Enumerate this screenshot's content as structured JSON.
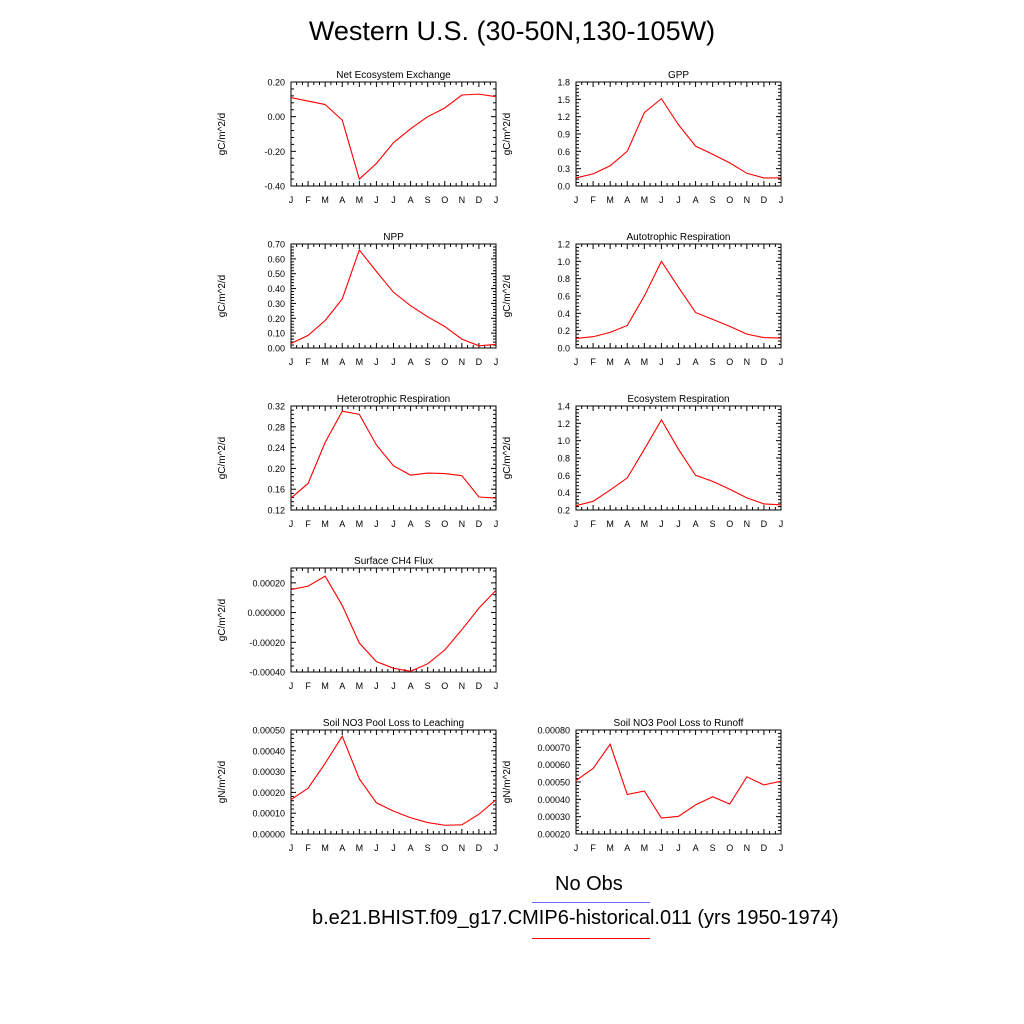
{
  "title": "Western U.S. (30-50N,130-105W)",
  "months": [
    "J",
    "F",
    "M",
    "A",
    "M",
    "J",
    "J",
    "A",
    "S",
    "O",
    "N",
    "D",
    "J"
  ],
  "colors": {
    "model": "#ff0000",
    "obs": "#6b6bff"
  },
  "legend": {
    "obs_label": "No Obs",
    "model_label": "b.e21.BHIST.f09_g17.CMIP6-historical.011 (yrs 1950-1974)"
  },
  "chart_data": [
    {
      "id": "nee",
      "type": "line",
      "title": "Net Ecosystem Exchange",
      "ylabel": "gC/m^2/d",
      "ylim": [
        -0.4,
        0.2
      ],
      "yticks": [
        -0.4,
        -0.2,
        0.0,
        0.2
      ],
      "ytick_labels": [
        "-0.40",
        "-0.20",
        "0.00",
        "0.20"
      ],
      "series": [
        {
          "values": [
            0.11,
            0.09,
            0.07,
            -0.02,
            -0.36,
            -0.27,
            -0.15,
            -0.07,
            0.0,
            0.05,
            0.125,
            0.13,
            0.115
          ]
        }
      ]
    },
    {
      "id": "gpp",
      "type": "line",
      "title": "GPP",
      "ylabel": "gC/m^2/d",
      "ylim": [
        0.0,
        1.8
      ],
      "yticks": [
        0.0,
        0.3,
        0.6,
        0.9,
        1.2,
        1.5,
        1.8
      ],
      "ytick_labels": [
        "0.0",
        "0.3",
        "0.6",
        "0.9",
        "1.2",
        "1.5",
        "1.8"
      ],
      "series": [
        {
          "values": [
            0.14,
            0.21,
            0.35,
            0.6,
            1.27,
            1.51,
            1.06,
            0.69,
            0.55,
            0.4,
            0.22,
            0.14,
            0.14
          ]
        }
      ]
    },
    {
      "id": "npp",
      "type": "line",
      "title": "NPP",
      "ylabel": "gC/m^2/d",
      "ylim": [
        0.0,
        0.7
      ],
      "yticks": [
        0.0,
        0.1,
        0.2,
        0.3,
        0.4,
        0.5,
        0.6,
        0.7
      ],
      "ytick_labels": [
        "0.00",
        "0.10",
        "0.20",
        "0.30",
        "0.40",
        "0.50",
        "0.60",
        "0.70"
      ],
      "series": [
        {
          "values": [
            0.03,
            0.085,
            0.185,
            0.33,
            0.66,
            0.515,
            0.375,
            0.285,
            0.21,
            0.145,
            0.06,
            0.015,
            0.025
          ]
        }
      ]
    },
    {
      "id": "ar",
      "type": "line",
      "title": "Autotrophic Respiration",
      "ylabel": "gC/m^2/d",
      "ylim": [
        0.0,
        1.2
      ],
      "yticks": [
        0.0,
        0.2,
        0.4,
        0.6,
        0.8,
        1.0,
        1.2
      ],
      "ytick_labels": [
        "0.0",
        "0.2",
        "0.4",
        "0.6",
        "0.8",
        "1.0",
        "1.2"
      ],
      "series": [
        {
          "values": [
            0.11,
            0.13,
            0.18,
            0.26,
            0.6,
            1.0,
            0.7,
            0.41,
            0.33,
            0.25,
            0.16,
            0.12,
            0.115
          ]
        }
      ]
    },
    {
      "id": "hr",
      "type": "line",
      "title": "Heterotrophic Respiration",
      "ylabel": "gC/m^2/d",
      "ylim": [
        0.12,
        0.32
      ],
      "yticks": [
        0.12,
        0.16,
        0.2,
        0.24,
        0.28,
        0.32
      ],
      "ytick_labels": [
        "0.12",
        "0.16",
        "0.20",
        "0.24",
        "0.28",
        "0.32"
      ],
      "series": [
        {
          "values": [
            0.143,
            0.171,
            0.25,
            0.31,
            0.304,
            0.245,
            0.205,
            0.187,
            0.191,
            0.19,
            0.186,
            0.145,
            0.143
          ]
        }
      ]
    },
    {
      "id": "er",
      "type": "line",
      "title": "Ecosystem Respiration",
      "ylabel": "gC/m^2/d",
      "ylim": [
        0.2,
        1.4
      ],
      "yticks": [
        0.2,
        0.4,
        0.6,
        0.8,
        1.0,
        1.2,
        1.4
      ],
      "ytick_labels": [
        "0.2",
        "0.4",
        "0.6",
        "0.8",
        "1.0",
        "1.2",
        "1.4"
      ],
      "series": [
        {
          "values": [
            0.25,
            0.3,
            0.43,
            0.57,
            0.9,
            1.24,
            0.9,
            0.6,
            0.53,
            0.44,
            0.34,
            0.27,
            0.26
          ]
        }
      ]
    },
    {
      "id": "ch4",
      "type": "line",
      "title": "Surface CH4 Flux",
      "ylabel": "gC/m^2/d",
      "ylim": [
        -0.0004,
        0.0003
      ],
      "yticks": [
        -0.0004,
        -0.0002,
        0.0,
        0.0002
      ],
      "ytick_labels": [
        "-0.00040",
        "-0.00020",
        "0.000000",
        "0.00020"
      ],
      "series": [
        {
          "values": [
            0.000155,
            0.000178,
            0.000245,
            4.8e-05,
            -0.000205,
            -0.00033,
            -0.000375,
            -0.000395,
            -0.000345,
            -0.000252,
            -0.000115,
            3e-05,
            0.00015
          ]
        }
      ]
    },
    {
      "id": "leach",
      "type": "line",
      "title": "Soil NO3 Pool Loss to Leaching",
      "ylabel": "gN/m^2/d",
      "ylim": [
        0.0,
        0.0005
      ],
      "yticks": [
        0.0,
        0.0001,
        0.0002,
        0.0003,
        0.0004,
        0.0005
      ],
      "ytick_labels": [
        "0.00000",
        "0.00010",
        "0.00020",
        "0.00030",
        "0.00040",
        "0.00050"
      ],
      "series": [
        {
          "values": [
            0.000165,
            0.00022,
            0.00034,
            0.00047,
            0.000265,
            0.00015,
            0.00011,
            7.8e-05,
            5.5e-05,
            4.2e-05,
            4.4e-05,
            9.5e-05,
            0.000165
          ]
        }
      ]
    },
    {
      "id": "runoff",
      "type": "line",
      "title": "Soil NO3 Pool Loss to Runoff",
      "ylabel": "gN/m^2/d",
      "ylim": [
        0.0002,
        0.0008
      ],
      "yticks": [
        0.0002,
        0.0003,
        0.0004,
        0.0005,
        0.0006,
        0.0007,
        0.0008
      ],
      "ytick_labels": [
        "0.00020",
        "0.00030",
        "0.00040",
        "0.00050",
        "0.00060",
        "0.00070",
        "0.00080"
      ],
      "series": [
        {
          "values": [
            0.000508,
            0.000578,
            0.000718,
            0.000428,
            0.000448,
            0.000292,
            0.000302,
            0.000368,
            0.000415,
            0.000373,
            0.00053,
            0.000483,
            0.000505
          ]
        }
      ]
    }
  ]
}
